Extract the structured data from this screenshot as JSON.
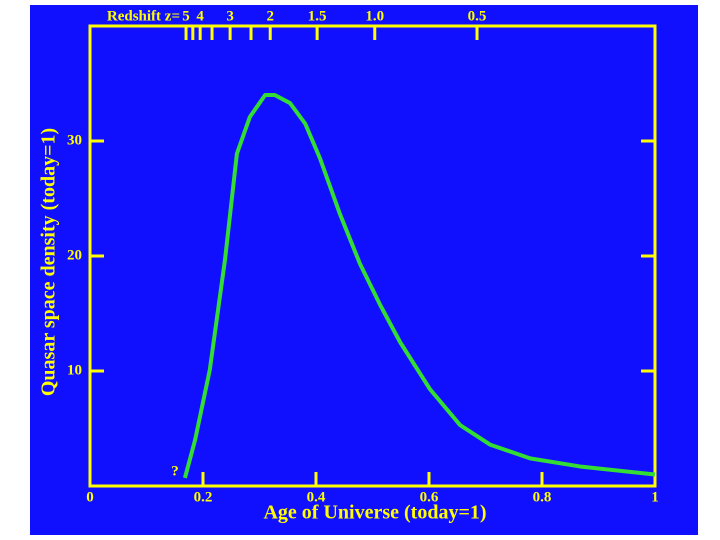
{
  "chart_data": {
    "type": "line",
    "xlabel": "Age of Universe (today=1)",
    "ylabel": "Quasar space density (today=1)",
    "x2label": "Redshift z=",
    "annotation": "?",
    "xlim": [
      0,
      1
    ],
    "xticks": [
      0,
      0.2,
      0.4,
      0.6,
      0.8,
      1
    ],
    "ylim": [
      0,
      40
    ],
    "yticks": [
      10,
      20,
      30
    ],
    "x2ticks": [
      {
        "value": 0.17,
        "label": "5"
      },
      {
        "value": 0.182,
        "label": null
      },
      {
        "value": 0.195,
        "label": "4"
      },
      {
        "value": 0.216,
        "label": null
      },
      {
        "value": 0.248,
        "label": "3"
      },
      {
        "value": 0.285,
        "label": null
      },
      {
        "value": 0.319,
        "label": "2"
      },
      {
        "value": 0.402,
        "label": "1.5"
      },
      {
        "value": 0.504,
        "label": "1.0"
      },
      {
        "value": 0.685,
        "label": "0.5"
      }
    ],
    "series": [
      {
        "color": "#33dd33",
        "x": [
          0.168,
          0.186,
          0.212,
          0.239,
          0.26,
          0.283,
          0.31,
          0.327,
          0.354,
          0.381,
          0.407,
          0.442,
          0.478,
          0.513,
          0.549,
          0.602,
          0.655,
          0.708,
          0.779,
          0.867,
          1.0
        ],
        "values": [
          0.7,
          4.0,
          10.1,
          19.7,
          28.9,
          32.1,
          34.0,
          34.0,
          33.3,
          31.5,
          28.5,
          23.7,
          19.3,
          15.8,
          12.5,
          8.4,
          5.3,
          3.6,
          2.4,
          1.7,
          1.0
        ]
      }
    ]
  }
}
